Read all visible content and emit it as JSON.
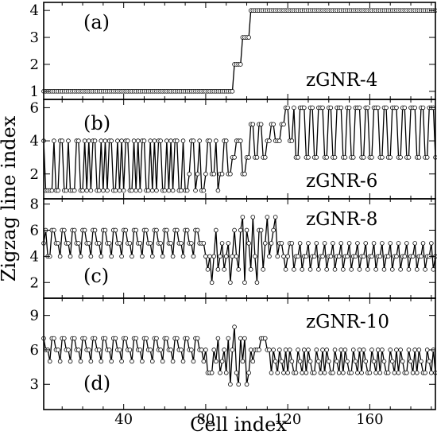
{
  "chart_data": {
    "type": "line",
    "xlabel": "Cell index",
    "ylabel": "Zigzag line index",
    "xlim": [
      1,
      192
    ],
    "x_ticks": [
      40,
      80,
      120,
      160
    ],
    "x_minor_step": 10,
    "marker": "open-circle",
    "line_color": "#000000",
    "panels": [
      {
        "id": "a",
        "label": "(a)",
        "name": "zGNR-4",
        "ylim": [
          0.7,
          4.3
        ],
        "y_ticks": [
          1,
          2,
          3,
          4
        ],
        "segments": [
          {
            "from": 1,
            "to": 93,
            "value": 1
          },
          {
            "from": 94,
            "to": 97,
            "value": 2
          },
          {
            "from": 98,
            "to": 101,
            "value": 3
          },
          {
            "from": 102,
            "to": 192,
            "value": 4
          }
        ]
      },
      {
        "id": "b",
        "label": "(b)",
        "name": "zGNR-6",
        "ylim": [
          0.5,
          6.5
        ],
        "y_ticks": [
          2,
          4,
          6
        ],
        "values": [
          4,
          1,
          1,
          1,
          1,
          4,
          1,
          1,
          4,
          4,
          1,
          1,
          4,
          1,
          1,
          1,
          4,
          4,
          1,
          1,
          4,
          1,
          4,
          1,
          4,
          4,
          1,
          1,
          4,
          1,
          4,
          1,
          4,
          4,
          1,
          1,
          4,
          1,
          4,
          1,
          4,
          4,
          1,
          1,
          4,
          1,
          4,
          1,
          4,
          4,
          1,
          1,
          4,
          1,
          4,
          1,
          4,
          4,
          1,
          1,
          4,
          1,
          4,
          1,
          4,
          4,
          1,
          1,
          4,
          1,
          1,
          2,
          4,
          4,
          1,
          2,
          4,
          1,
          1,
          2,
          4,
          4,
          2,
          2,
          4,
          1,
          2,
          2,
          4,
          4,
          2,
          2,
          3,
          3,
          4,
          4,
          4,
          2,
          2,
          3,
          3,
          5,
          5,
          3,
          3,
          5,
          5,
          3,
          3,
          4,
          4,
          5,
          5,
          4,
          4,
          4,
          5,
          5,
          6,
          6,
          4,
          4,
          6,
          3,
          3,
          6,
          6,
          6,
          3,
          3,
          6,
          6,
          3,
          3,
          6,
          6,
          6,
          3,
          3,
          6,
          6,
          3,
          3,
          6,
          6,
          6,
          3,
          3,
          6,
          6,
          3,
          3,
          6,
          6,
          6,
          3,
          3,
          6,
          6,
          3,
          3,
          6,
          6,
          6,
          3,
          3,
          6,
          6,
          3,
          3,
          6,
          6,
          6,
          3,
          3,
          6,
          6,
          3,
          3,
          6,
          6,
          6,
          3,
          3,
          6,
          6,
          3,
          3,
          6,
          6,
          6,
          3
        ]
      },
      {
        "id": "c",
        "label": "(c)",
        "name": "zGNR-8",
        "ylim": [
          0.8,
          8.4
        ],
        "y_ticks": [
          2,
          4,
          6,
          8
        ],
        "values": [
          5,
          6,
          4,
          4,
          6,
          6,
          5,
          5,
          4,
          6,
          6,
          5,
          5,
          4,
          6,
          6,
          5,
          5,
          4,
          6,
          6,
          5,
          5,
          4,
          6,
          6,
          5,
          5,
          4,
          6,
          6,
          5,
          5,
          4,
          6,
          6,
          5,
          5,
          4,
          6,
          6,
          5,
          5,
          4,
          6,
          6,
          5,
          5,
          4,
          6,
          6,
          5,
          5,
          4,
          6,
          6,
          5,
          5,
          4,
          6,
          6,
          5,
          5,
          4,
          6,
          6,
          5,
          5,
          4,
          6,
          6,
          5,
          5,
          4,
          6,
          6,
          5,
          5,
          5,
          4,
          3,
          4,
          2,
          4,
          6,
          3,
          4,
          5,
          3,
          4,
          5,
          2,
          4,
          6,
          4,
          3,
          6,
          7,
          2,
          6,
          5,
          3,
          7,
          4,
          2,
          6,
          6,
          3,
          5,
          7,
          4,
          5,
          6,
          7,
          4,
          5,
          5,
          4,
          3,
          4,
          5,
          5,
          3,
          4,
          4,
          5,
          3,
          4,
          4,
          5,
          3,
          4,
          4,
          5,
          3,
          4,
          4,
          5,
          3,
          4,
          4,
          5,
          3,
          4,
          4,
          5,
          3,
          4,
          4,
          5,
          3,
          4,
          4,
          5,
          3,
          4,
          4,
          5,
          3,
          4,
          4,
          5,
          3,
          4,
          4,
          5,
          3,
          4,
          4,
          5,
          3,
          4,
          4,
          5,
          3,
          4,
          4,
          5,
          3,
          4,
          4,
          5,
          3,
          4,
          4,
          5,
          3,
          4,
          4,
          5,
          3,
          4
        ]
      },
      {
        "id": "d",
        "label": "(d)",
        "name": "zGNR-10",
        "ylim": [
          0.8,
          10.5
        ],
        "y_ticks": [
          3,
          6,
          9
        ],
        "values": [
          7,
          6,
          6,
          5,
          7,
          7,
          6,
          6,
          5,
          7,
          7,
          6,
          6,
          5,
          7,
          7,
          6,
          6,
          5,
          7,
          7,
          6,
          6,
          5,
          7,
          7,
          6,
          6,
          5,
          7,
          7,
          6,
          6,
          5,
          7,
          7,
          6,
          6,
          5,
          7,
          7,
          6,
          6,
          5,
          7,
          7,
          6,
          6,
          5,
          7,
          7,
          6,
          6,
          5,
          7,
          7,
          6,
          6,
          5,
          7,
          7,
          6,
          6,
          5,
          7,
          7,
          6,
          6,
          5,
          7,
          7,
          6,
          6,
          5,
          7,
          7,
          6,
          6,
          5,
          6,
          4,
          4,
          4,
          6,
          5,
          7,
          4,
          5,
          6,
          4,
          7,
          3,
          6,
          8,
          4,
          3,
          7,
          5,
          7,
          3,
          4,
          6,
          5,
          6,
          6,
          6,
          7,
          7,
          7,
          6,
          6,
          4,
          6,
          5,
          4,
          6,
          5,
          4,
          6,
          4,
          6,
          5,
          4,
          4,
          6,
          5,
          4,
          6,
          4,
          6,
          5,
          4,
          4,
          6,
          5,
          4,
          6,
          4,
          6,
          5,
          4,
          4,
          6,
          5,
          4,
          6,
          4,
          6,
          5,
          4,
          4,
          6,
          5,
          4,
          6,
          4,
          6,
          5,
          4,
          4,
          6,
          5,
          4,
          6,
          4,
          6,
          5,
          4,
          4,
          6,
          5,
          4,
          6,
          4,
          6,
          5,
          4,
          4,
          6,
          5,
          4,
          6,
          4,
          6,
          5,
          4,
          4,
          6,
          5,
          4,
          6,
          4
        ]
      }
    ]
  }
}
